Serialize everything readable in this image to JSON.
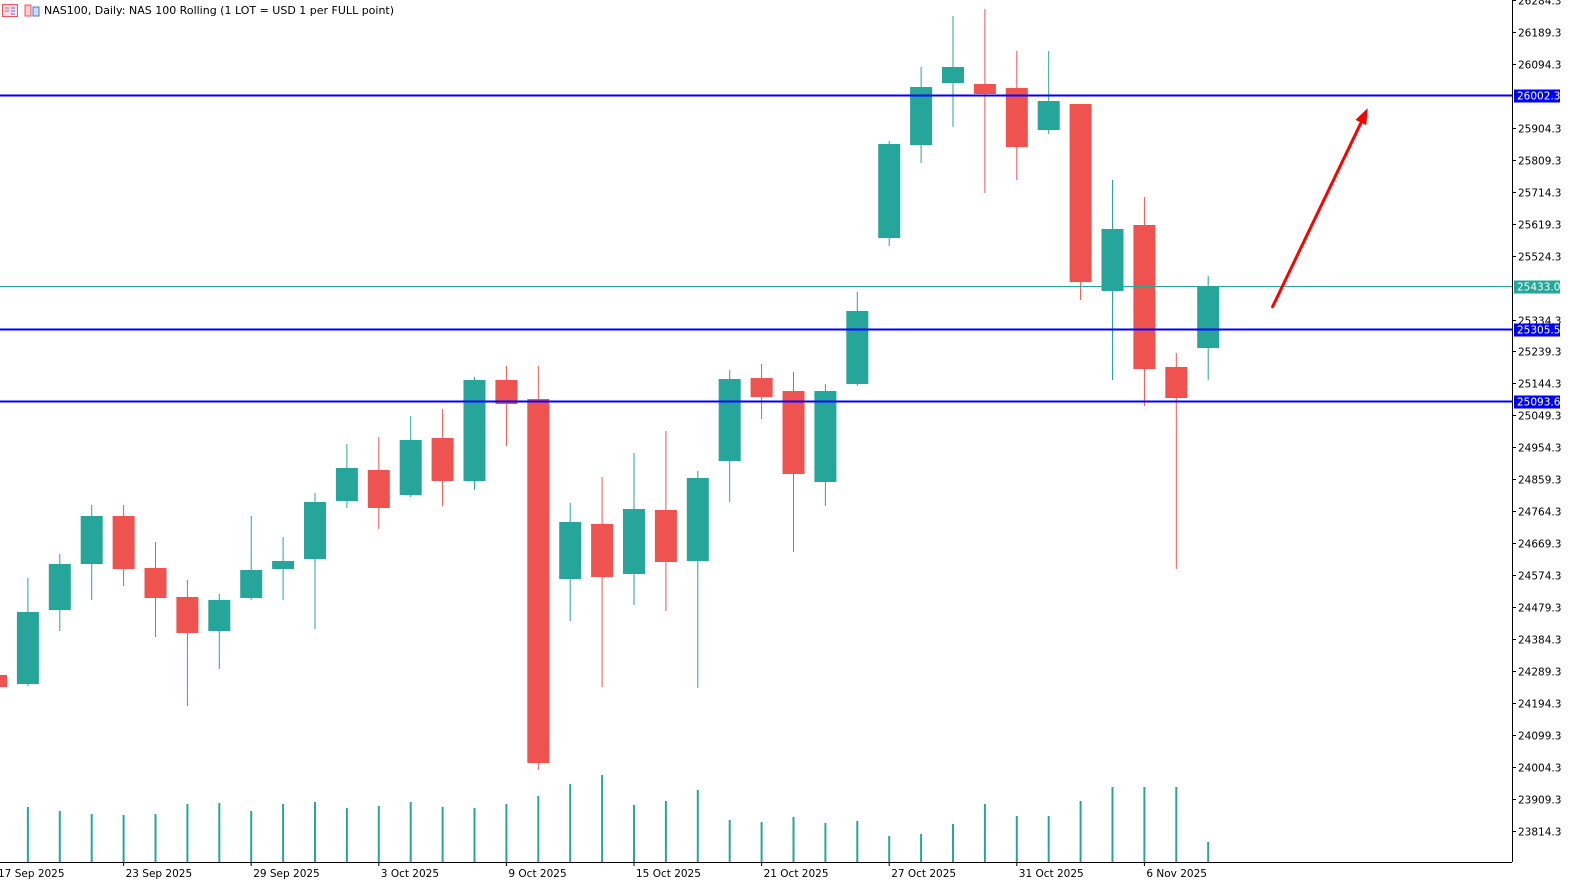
{
  "window": {
    "title": "NAS100, Daily:  NAS 100 Rolling (1 LOT = USD 1 per FULL point)",
    "icons": [
      "chart-window-icon",
      "symbol-properties-icon"
    ]
  },
  "colors": {
    "bull": "#26a69a",
    "bear": "#ef5350",
    "level_line": "#0000ff",
    "bid_line": "#26a69a",
    "arrow": "#ff0000",
    "volume": "#26a69a"
  },
  "chart_data": {
    "type": "candlestick",
    "symbol": "NAS100",
    "timeframe": "Daily",
    "ylim": [
      23760,
      26290
    ],
    "y_ticks": [
      "26284.3",
      "26189.3",
      "26094.3",
      "25904.3",
      "25809.3",
      "25714.3",
      "25619.3",
      "25524.3",
      "25334.3",
      "25239.3",
      "25144.3",
      "25049.3",
      "24954.3",
      "24859.3",
      "24764.3",
      "24669.3",
      "24574.3",
      "24479.3",
      "24384.3",
      "24289.3",
      "24194.3",
      "24099.3",
      "24004.3",
      "23909.3",
      "23814.3"
    ],
    "x_ticks": [
      {
        "index": 0,
        "label": "17 Sep 2025"
      },
      {
        "index": 4,
        "label": "23 Sep 2025"
      },
      {
        "index": 8,
        "label": "29 Sep 2025"
      },
      {
        "index": 12,
        "label": "3 Oct 2025"
      },
      {
        "index": 16,
        "label": "9 Oct 2025"
      },
      {
        "index": 20,
        "label": "15 Oct 2025"
      },
      {
        "index": 24,
        "label": "21 Oct 2025"
      },
      {
        "index": 28,
        "label": "27 Oct 2025"
      },
      {
        "index": 32,
        "label": "31 Oct 2025"
      },
      {
        "index": 36,
        "label": "6 Nov 2025"
      }
    ],
    "ohlc": [
      [
        24277.5,
        24277.5,
        24241.8,
        24241.8
      ],
      [
        24250.7,
        24565.9,
        24244.8,
        24464.8
      ],
      [
        24470.7,
        24637.3,
        24408.3,
        24607.5
      ],
      [
        24607.5,
        24782.9,
        24500.5,
        24750.2
      ],
      [
        24750.2,
        24782.9,
        24542.1,
        24592.6
      ],
      [
        24595.6,
        24673.0,
        24390.5,
        24506.4
      ],
      [
        24509.4,
        24559.9,
        24185.3,
        24402.4
      ],
      [
        24408.3,
        24518.3,
        24295.3,
        24500.5
      ],
      [
        24506.4,
        24750.2,
        24500.5,
        24589.7
      ],
      [
        24592.6,
        24687.8,
        24500.5,
        24616.5
      ],
      [
        24622.4,
        24818.6,
        24414.2,
        24791.9
      ],
      [
        24794.8,
        24964.3,
        24774.0,
        24892.9
      ],
      [
        24887.0,
        24985.1,
        24711.6,
        24774.0
      ],
      [
        24812.6,
        25047.5,
        24806.7,
        24976.2
      ],
      [
        24982.1,
        25068.3,
        24779.9,
        24854.3
      ],
      [
        24854.3,
        25163.4,
        24827.5,
        25154.5
      ],
      [
        25154.5,
        25196.2,
        24958.3,
        25083.2
      ],
      [
        25098.0,
        25196.2,
        23995.1,
        24015.9
      ],
      [
        24562.9,
        24788.9,
        24438.0,
        24732.4
      ],
      [
        24726.5,
        24866.2,
        24241.8,
        24568.9
      ],
      [
        24577.8,
        24937.5,
        24485.6,
        24771.0
      ],
      [
        24768.1,
        25002.9,
        24467.8,
        24613.5
      ],
      [
        24616.5,
        24884.0,
        24238.8,
        24863.2
      ],
      [
        24913.7,
        25184.3,
        24791.9,
        25157.5
      ],
      [
        25160.4,
        25202.1,
        25038.6,
        25104.0
      ],
      [
        25121.8,
        25178.3,
        24643.3,
        24875.1
      ],
      [
        24851.3,
        25142.6,
        24779.9,
        25121.8
      ],
      [
        25142.6,
        25416.2,
        25136.7,
        25359.7
      ],
      [
        25576.7,
        25865.1,
        25553.0,
        25856.2
      ],
      [
        25853.2,
        26085.1,
        25799.7,
        26025.6
      ],
      [
        26037.5,
        26236.7,
        25906.7,
        26085.1
      ],
      [
        26034.6,
        26257.5,
        25710.5,
        26004.8
      ],
      [
        26022.7,
        26132.7,
        25749.2,
        25847.3
      ],
      [
        25897.8,
        26132.7,
        25885.9,
        25984.0
      ],
      [
        25975.1,
        25975.1,
        25392.4,
        25445.9
      ],
      [
        25419.2,
        25749.2,
        25154.5,
        25603.5
      ],
      [
        25615.4,
        25698.6,
        25077.2,
        25187.2
      ],
      [
        25193.2,
        25234.9,
        24592.6,
        25101.0
      ],
      [
        25249.7,
        25463.8,
        25154.5,
        25434.0
      ]
    ],
    "volume_relative": [
      null,
      55,
      51,
      48,
      47,
      48,
      58,
      59,
      51,
      58,
      60,
      54,
      56,
      60,
      55,
      54,
      58,
      66,
      78,
      87,
      57,
      61,
      72,
      42,
      40,
      45,
      39,
      41,
      26,
      28,
      38,
      58,
      46,
      46,
      61,
      75,
      75,
      75,
      20
    ],
    "horizontal_levels": [
      {
        "price": 26002.3,
        "label": "26002.3",
        "kind": "level"
      },
      {
        "price": 25305.5,
        "label": "25305.5",
        "kind": "level"
      },
      {
        "price": 25093.6,
        "label": "25093.6",
        "kind": "level"
      },
      {
        "price": 25433.0,
        "label": "25433.0",
        "kind": "bid"
      }
    ],
    "arrow": {
      "from": {
        "bar_index": 40,
        "price": 25369
      },
      "to": {
        "bar_index": 43,
        "price": 25963
      },
      "direction": "up"
    }
  }
}
